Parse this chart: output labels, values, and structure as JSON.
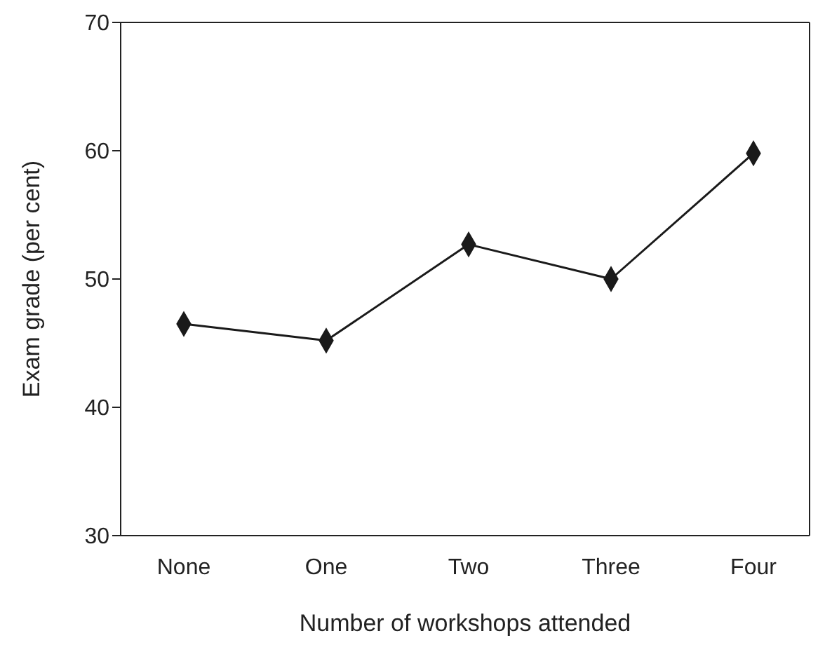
{
  "chart_data": {
    "type": "line",
    "xlabel": "Number of workshops attended",
    "ylabel": "Exam grade (per cent)",
    "categories": [
      "None",
      "One",
      "Two",
      "Three",
      "Four"
    ],
    "series": [
      {
        "color": "#1a1a1a",
        "values": [
          46.5,
          45.2,
          52.7,
          50.0,
          59.8
        ]
      }
    ],
    "ylim": [
      30,
      70
    ],
    "yticks": [
      30,
      40,
      50,
      60,
      70
    ],
    "grid": false,
    "legend": false,
    "marker": "diamond",
    "line_style": "solid"
  }
}
